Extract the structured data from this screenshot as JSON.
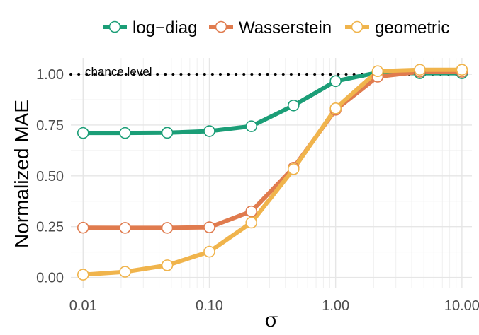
{
  "chart_data": {
    "type": "line",
    "xscale": "log",
    "x": [
      0.01,
      0.0215,
      0.0464,
      0.1,
      0.215,
      0.464,
      1.0,
      2.15,
      4.64,
      10.0
    ],
    "series": [
      {
        "name": "log−diag",
        "color": "#1b9e77",
        "values": [
          0.711,
          0.711,
          0.712,
          0.72,
          0.744,
          0.846,
          0.966,
          1.008,
          1.005,
          1.005
        ]
      },
      {
        "name": "Wasserstein",
        "color": "#e07b4e",
        "values": [
          0.245,
          0.244,
          0.244,
          0.247,
          0.325,
          0.54,
          0.825,
          0.988,
          1.012,
          1.012
        ]
      },
      {
        "name": "geometric",
        "color": "#f0b44c",
        "values": [
          0.014,
          0.028,
          0.06,
          0.127,
          0.27,
          0.533,
          0.832,
          1.015,
          1.022,
          1.022
        ]
      }
    ],
    "xlabel": "σ",
    "ylabel": "Normalized MAE",
    "xlim": [
      0.008,
      12
    ],
    "ylim": [
      -0.05,
      1.08
    ],
    "xticks": [
      0.01,
      0.1,
      1.0,
      10.0
    ],
    "xtick_labels": [
      "0.01",
      "0.10",
      "1.00",
      "10.00"
    ],
    "yticks": [
      0.0,
      0.25,
      0.5,
      0.75,
      1.0
    ],
    "ytick_labels": [
      "0.00",
      "0.25",
      "0.50",
      "0.75",
      "1.00"
    ],
    "reference_line": {
      "y": 1.0,
      "style": "dotted",
      "label": "chance level"
    },
    "grid": true,
    "legend": "top"
  }
}
